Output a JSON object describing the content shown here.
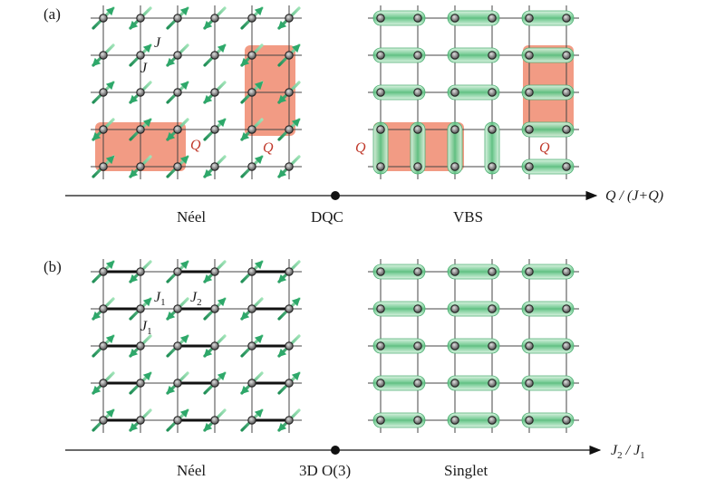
{
  "panel_a": {
    "label": "(a)",
    "coupling_labels": [
      "J",
      "J"
    ],
    "plaquette_labels": [
      "Q",
      "Q",
      "Q",
      "Q"
    ],
    "axis_label": "Q / (J+Q)",
    "phases": [
      "Néel",
      "DQC",
      "VBS"
    ]
  },
  "panel_b": {
    "label": "(b)",
    "coupling_labels": {
      "j1_a": "J",
      "j1_a_sub": "1",
      "j2": "J",
      "j2_sub": "2",
      "j1_b": "J",
      "j1_b_sub": "1"
    },
    "axis_label": {
      "num": "J",
      "num_sub": "2",
      "slash": " / ",
      "den": "J",
      "den_sub": "1"
    },
    "phases": [
      "Néel",
      "3D O(3)",
      "Singlet"
    ]
  },
  "colors": {
    "grid": "#444444",
    "site_fill": "#888888",
    "spin_arrow": "#2ea86a",
    "dimer": "#7fd39a",
    "plaquette": "#f08a6e",
    "q_label": "#c0392b"
  },
  "icons": [
    "spin-arrow-icon",
    "dimer-singlet-icon",
    "site-dot-icon"
  ]
}
